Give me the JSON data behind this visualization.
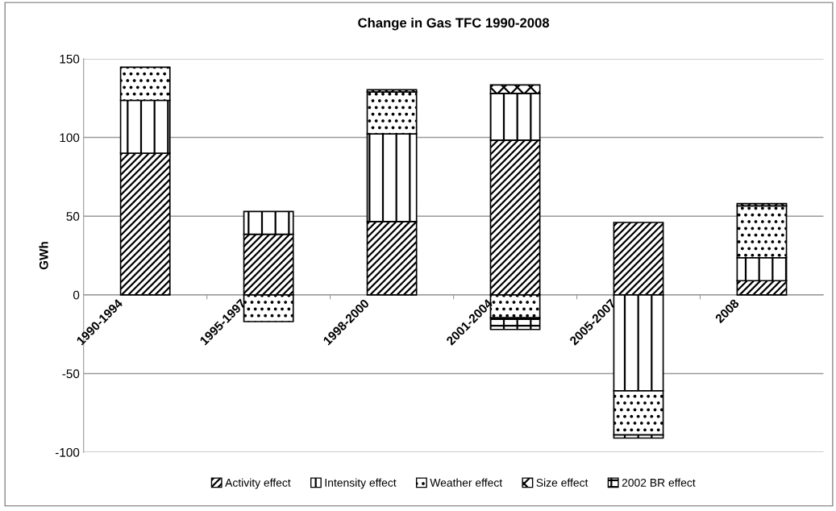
{
  "chart_data": {
    "type": "bar",
    "title": "Change in Gas TFC 1990-2008",
    "ylabel": "GWh",
    "stacked": true,
    "categories": [
      "1990-1994",
      "1995-1997",
      "1998-2000",
      "2001-2004",
      "2005-2007",
      "2008"
    ],
    "series": [
      {
        "name": "Activity effect",
        "color": "#000000",
        "values": [
          90,
          38.5,
          46.6,
          98.3,
          46,
          9
        ]
      },
      {
        "name": "Intensity effect",
        "color": "#000000",
        "values": [
          33.6,
          14.5,
          55.7,
          29.7,
          -61,
          14.6
        ]
      },
      {
        "name": "Weather effect",
        "color": "#000000",
        "values": [
          21,
          -17,
          26.6,
          -14.6,
          -28,
          33
        ]
      },
      {
        "name": "Size effect",
        "color": "#000000",
        "values": [
          null,
          null,
          1.4,
          5.4,
          null,
          1.4
        ]
      },
      {
        "name": "2002 BR effect",
        "color": "#000000",
        "values": [
          null,
          null,
          null,
          -7.4,
          -2,
          null
        ]
      }
    ],
    "ylim": [
      -100,
      150
    ],
    "yticks": [
      -100,
      -50,
      0,
      50,
      100,
      150
    ],
    "grid": "y",
    "legend": "bottom"
  }
}
